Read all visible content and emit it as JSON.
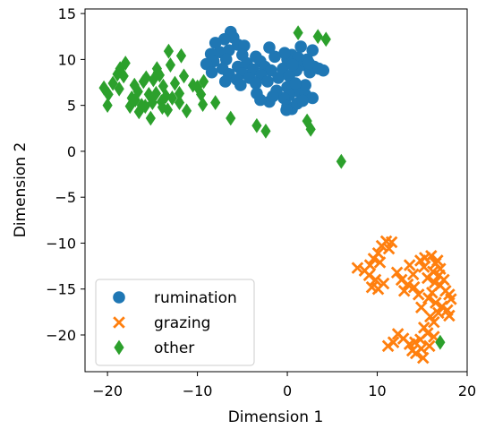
{
  "chart_data": {
    "type": "scatter",
    "xlabel": "Dimension 1",
    "ylabel": "Dimension 2",
    "xlim": [
      -22.5,
      20
    ],
    "ylim": [
      -24,
      15.5
    ],
    "xticks": [
      -20,
      -10,
      0,
      10,
      20
    ],
    "yticks": [
      15,
      10,
      5,
      0,
      -5,
      -10,
      -15,
      -20
    ],
    "grid": false,
    "legend_position": "lower-left",
    "series": [
      {
        "name": "rumination",
        "marker": "circle",
        "color": "#1f77b4",
        "points": [
          [
            -6.3,
            13.0
          ],
          [
            -6.0,
            12.4
          ],
          [
            -7.0,
            12.2
          ],
          [
            -8.0,
            11.8
          ],
          [
            -5.5,
            11.6
          ],
          [
            -4.8,
            11.5
          ],
          [
            -2.0,
            11.3
          ],
          [
            -6.5,
            11.0
          ],
          [
            -7.5,
            10.8
          ],
          [
            -8.5,
            10.6
          ],
          [
            -5.0,
            10.5
          ],
          [
            -3.5,
            10.3
          ],
          [
            -6.8,
            10.0
          ],
          [
            -8.2,
            9.8
          ],
          [
            -9.0,
            9.5
          ],
          [
            -4.5,
            9.6
          ],
          [
            -3.0,
            9.8
          ],
          [
            -5.5,
            9.2
          ],
          [
            -7.2,
            9.0
          ],
          [
            -8.4,
            8.6
          ],
          [
            -6.5,
            8.4
          ],
          [
            -5.0,
            8.5
          ],
          [
            -3.8,
            8.9
          ],
          [
            -2.5,
            9.2
          ],
          [
            -1.8,
            8.8
          ],
          [
            -2.9,
            8.3
          ],
          [
            -4.2,
            8.0
          ],
          [
            -5.6,
            7.8
          ],
          [
            -6.9,
            7.6
          ],
          [
            -5.2,
            7.2
          ],
          [
            -3.5,
            7.4
          ],
          [
            -2.2,
            7.6
          ],
          [
            -1.0,
            8.0
          ],
          [
            -0.5,
            9.0
          ],
          [
            0.0,
            10.0
          ],
          [
            0.5,
            10.5
          ],
          [
            1.2,
            10.2
          ],
          [
            1.8,
            9.4
          ],
          [
            1.0,
            8.8
          ],
          [
            0.2,
            8.2
          ],
          [
            2.5,
            8.6
          ],
          [
            3.0,
            9.2
          ],
          [
            2.2,
            10.0
          ],
          [
            3.5,
            9.0
          ],
          [
            4.0,
            8.8
          ],
          [
            2.8,
            11.0
          ],
          [
            1.5,
            11.4
          ],
          [
            0.6,
            9.4
          ],
          [
            -0.3,
            10.7
          ],
          [
            -1.4,
            10.3
          ],
          [
            0.0,
            7.0
          ],
          [
            0.6,
            6.8
          ],
          [
            1.2,
            6.5
          ],
          [
            2.0,
            6.2
          ],
          [
            2.8,
            5.8
          ],
          [
            0.2,
            6.1
          ],
          [
            -0.4,
            5.8
          ],
          [
            -2.0,
            5.4
          ],
          [
            -3.0,
            5.6
          ],
          [
            -1.2,
            6.6
          ],
          [
            0.0,
            4.9
          ],
          [
            0.5,
            4.6
          ],
          [
            1.1,
            5.2
          ],
          [
            -0.1,
            4.5
          ],
          [
            2.0,
            7.2
          ],
          [
            1.7,
            5.5
          ],
          [
            -3.4,
            6.3
          ],
          [
            2.4,
            9.6
          ],
          [
            0.9,
            7.4
          ],
          [
            -1.6,
            6.0
          ]
        ]
      },
      {
        "name": "grazing",
        "marker": "x",
        "color": "#ff7f0e",
        "points": [
          [
            11.0,
            -9.8
          ],
          [
            11.6,
            -9.9
          ],
          [
            10.5,
            -10.3
          ],
          [
            10.1,
            -11.1
          ],
          [
            9.6,
            -11.7
          ],
          [
            10.3,
            -12.1
          ],
          [
            9.2,
            -12.4
          ],
          [
            8.6,
            -13.0
          ],
          [
            7.8,
            -12.7
          ],
          [
            9.1,
            -13.5
          ],
          [
            9.8,
            -14.0
          ],
          [
            10.7,
            -14.4
          ],
          [
            9.4,
            -14.8
          ],
          [
            10.1,
            -15.0
          ],
          [
            12.2,
            -13.2
          ],
          [
            12.7,
            -14.0
          ],
          [
            13.4,
            -14.5
          ],
          [
            13.0,
            -15.2
          ],
          [
            14.1,
            -14.8
          ],
          [
            14.6,
            -15.6
          ],
          [
            14.0,
            -13.4
          ],
          [
            13.6,
            -12.4
          ],
          [
            14.8,
            -11.9
          ],
          [
            15.3,
            -11.6
          ],
          [
            16.0,
            -11.4
          ],
          [
            16.5,
            -12.2
          ],
          [
            17.0,
            -12.8
          ],
          [
            16.2,
            -13.1
          ],
          [
            15.6,
            -13.8
          ],
          [
            16.4,
            -14.3
          ],
          [
            17.0,
            -14.6
          ],
          [
            17.6,
            -15.2
          ],
          [
            16.1,
            -15.4
          ],
          [
            15.7,
            -16.0
          ],
          [
            16.5,
            -16.5
          ],
          [
            17.2,
            -16.9
          ],
          [
            17.8,
            -17.3
          ],
          [
            18.2,
            -16.1
          ],
          [
            16.8,
            -17.6
          ],
          [
            15.9,
            -18.0
          ],
          [
            16.3,
            -18.6
          ],
          [
            15.2,
            -19.2
          ],
          [
            15.6,
            -19.8
          ],
          [
            14.8,
            -20.5
          ],
          [
            14.2,
            -20.8
          ],
          [
            13.6,
            -21.0
          ],
          [
            12.9,
            -20.4
          ],
          [
            12.3,
            -19.9
          ],
          [
            11.8,
            -20.8
          ],
          [
            11.2,
            -21.2
          ],
          [
            14.9,
            -21.5
          ],
          [
            14.3,
            -22.0
          ],
          [
            15.1,
            -22.5
          ],
          [
            13.9,
            -21.7
          ],
          [
            15.8,
            -21.2
          ],
          [
            16.3,
            -20.2
          ],
          [
            16.9,
            -13.5
          ],
          [
            17.4,
            -14.0
          ],
          [
            18.0,
            -15.6
          ],
          [
            18.0,
            -17.9
          ],
          [
            16.7,
            -11.9
          ],
          [
            15.2,
            -12.6
          ],
          [
            14.9,
            -17.0
          ],
          [
            11.3,
            -10.6
          ]
        ]
      },
      {
        "name": "other",
        "marker": "diamond",
        "color": "#2ca02c",
        "points": [
          [
            -20.4,
            6.9
          ],
          [
            -19.9,
            6.2
          ],
          [
            -20.0,
            5.0
          ],
          [
            -19.4,
            7.4
          ],
          [
            -18.6,
            9.0
          ],
          [
            -18.9,
            8.4
          ],
          [
            -18.0,
            9.6
          ],
          [
            -18.2,
            8.2
          ],
          [
            -18.7,
            6.8
          ],
          [
            -17.5,
            4.9
          ],
          [
            -17.0,
            7.2
          ],
          [
            -16.6,
            6.5
          ],
          [
            -16.9,
            5.6
          ],
          [
            -16.2,
            5.0
          ],
          [
            -16.5,
            4.3
          ],
          [
            -15.8,
            4.9
          ],
          [
            -15.2,
            3.6
          ],
          [
            -15.4,
            6.2
          ],
          [
            -16.0,
            7.6
          ],
          [
            -15.7,
            8.0
          ],
          [
            -14.5,
            9.0
          ],
          [
            -14.9,
            7.8
          ],
          [
            -14.2,
            8.3
          ],
          [
            -13.8,
            7.1
          ],
          [
            -14.6,
            6.3
          ],
          [
            -14.0,
            5.4
          ],
          [
            -13.5,
            6.0
          ],
          [
            -13.3,
            4.5
          ],
          [
            -12.8,
            5.8
          ],
          [
            -13.0,
            9.4
          ],
          [
            -13.2,
            10.9
          ],
          [
            -11.8,
            10.4
          ],
          [
            -12.5,
            7.4
          ],
          [
            -12.0,
            6.3
          ],
          [
            -11.2,
            4.4
          ],
          [
            -10.5,
            7.2
          ],
          [
            -9.6,
            6.2
          ],
          [
            -10.0,
            7.0
          ],
          [
            -9.4,
            5.1
          ],
          [
            -8.0,
            5.3
          ],
          [
            -6.3,
            3.6
          ],
          [
            -14.4,
            8.6
          ],
          [
            -13.9,
            4.8
          ],
          [
            -17.3,
            5.8
          ],
          [
            -11.5,
            8.2
          ],
          [
            -3.4,
            2.8
          ],
          [
            -2.4,
            2.2
          ],
          [
            1.2,
            12.9
          ],
          [
            3.4,
            12.5
          ],
          [
            4.3,
            12.2
          ],
          [
            2.2,
            3.3
          ],
          [
            2.6,
            2.4
          ],
          [
            6.0,
            -1.1
          ],
          [
            17.0,
            -20.8
          ],
          [
            -12.0,
            5.3
          ],
          [
            -9.3,
            7.6
          ],
          [
            -15.0,
            5.3
          ]
        ]
      }
    ]
  }
}
